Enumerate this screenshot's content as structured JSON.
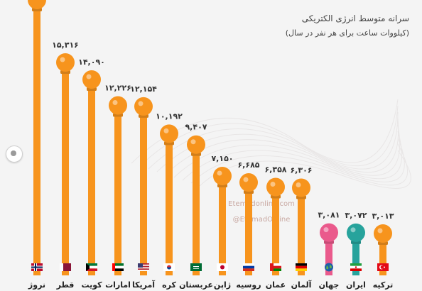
{
  "chart_data": {
    "type": "bar",
    "title": "سرانه متوسط انرژی الکتریکی",
    "subtitle": "(کیلووات ساعت برای هر نفر در سال)",
    "categories": [
      "نروژ",
      "قطر",
      "کویت",
      "امارات",
      "آمریکا",
      "کره",
      "عربستان",
      "ژاپن",
      "روسیه",
      "عمان",
      "آلمان",
      "جهان",
      "ایران",
      "ترکیه"
    ],
    "values": [
      null,
      15316,
      14090,
      12226,
      12154,
      10192,
      9407,
      7150,
      6685,
      6358,
      6306,
      3081,
      3072,
      3013
    ],
    "value_labels": [
      "",
      "۱۵,۳۱۶",
      "۱۴,۰۹۰",
      "۱۲,۲۲۶",
      "۱۲,۱۵۴",
      "۱۰,۱۹۲",
      "۹,۴۰۷",
      "۷,۱۵۰",
      "۶,۶۸۵",
      "۶,۳۵۸",
      "۶,۳۰۶",
      "۳,۰۸۱",
      "۳,۰۷۲",
      "۳,۰۱۳"
    ],
    "bar_colors": [
      "#f7941d",
      "#f7941d",
      "#f7941d",
      "#f7941d",
      "#f7941d",
      "#f7941d",
      "#f7941d",
      "#f7941d",
      "#f7941d",
      "#f7941d",
      "#f7941d",
      "#ea5a8c",
      "#27a39c",
      "#f7941d"
    ],
    "flags": [
      "norway",
      "qatar",
      "kuwait",
      "uae",
      "usa",
      "south-korea",
      "saudi-arabia",
      "japan",
      "russia",
      "oman",
      "germany",
      "world",
      "iran",
      "turkey"
    ],
    "watermark": [
      "Etemadonline.com",
      "@EtemadOnline"
    ]
  }
}
